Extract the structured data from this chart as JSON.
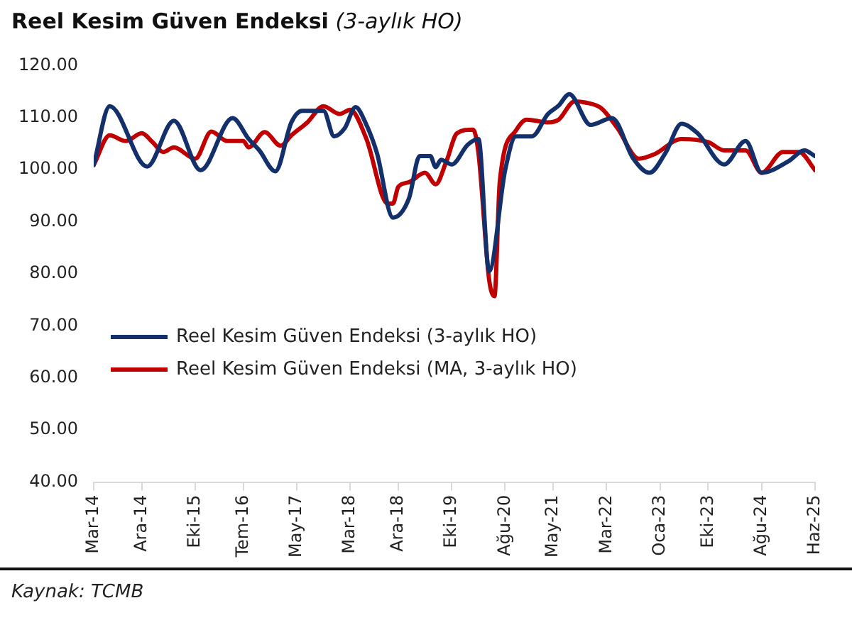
{
  "chart_data": {
    "type": "line",
    "title": "Reel Kesim Güven Endeksi",
    "subtitle": "(3-aylık HO)",
    "annotations": [
      "Kaynak: TCMB"
    ],
    "xlim": [
      "2014-03",
      "2025-06"
    ],
    "xticks": [
      {
        "value": "2014-03",
        "label": "Mar-14"
      },
      {
        "value": "2014-12",
        "label": "Ara-14"
      },
      {
        "value": "2015-10",
        "label": "Eki-15"
      },
      {
        "value": "2016-07",
        "label": "Tem-16"
      },
      {
        "value": "2017-05",
        "label": "May-17"
      },
      {
        "value": "2018-03",
        "label": "Mar-18"
      },
      {
        "value": "2018-12",
        "label": "Ara-18"
      },
      {
        "value": "2019-10",
        "label": "Eki-19"
      },
      {
        "value": "2020-08",
        "label": "Ağu-20"
      },
      {
        "value": "2021-05",
        "label": "May-21"
      },
      {
        "value": "2022-03",
        "label": "Mar-22"
      },
      {
        "value": "2023-01",
        "label": "Oca-23"
      },
      {
        "value": "2023-10",
        "label": "Eki-23"
      },
      {
        "value": "2024-08",
        "label": "Ağu-24"
      },
      {
        "value": "2025-06",
        "label": "Haz-25"
      }
    ],
    "ylim": [
      40,
      120
    ],
    "yticks": [
      {
        "value": 40,
        "label": "40.00"
      },
      {
        "value": 50,
        "label": "50.00"
      },
      {
        "value": 60,
        "label": "60.00"
      },
      {
        "value": 70,
        "label": "70.00"
      },
      {
        "value": 80,
        "label": "80.00"
      },
      {
        "value": 90,
        "label": "90.00"
      },
      {
        "value": 100,
        "label": "100.00"
      },
      {
        "value": 110,
        "label": "110.00"
      },
      {
        "value": 120,
        "label": "120.00"
      }
    ],
    "grid": false,
    "legend": "left",
    "marker": "none",
    "line_style": "solid",
    "series": [
      {
        "name": "Reel Kesim Güven Endeksi (3-aylık HO)",
        "color": "#14306b",
        "x": [
          "2014-03",
          "2014-06",
          "2015-01",
          "2015-06",
          "2015-11",
          "2016-05",
          "2016-08",
          "2016-10",
          "2017-01",
          "2017-04",
          "2017-06",
          "2017-10",
          "2017-12",
          "2018-02",
          "2018-04",
          "2018-06",
          "2018-08",
          "2018-11",
          "2019-02",
          "2019-04",
          "2019-06",
          "2019-07",
          "2019-08",
          "2019-10",
          "2020-01",
          "2020-03",
          "2020-05",
          "2020-08",
          "2020-10",
          "2021-01",
          "2021-04",
          "2021-06",
          "2021-08",
          "2021-12",
          "2022-04",
          "2022-08",
          "2022-11",
          "2023-02",
          "2023-05",
          "2023-08",
          "2024-01",
          "2024-05",
          "2024-08",
          "2025-01",
          "2025-04",
          "2025-06"
        ],
        "values": [
          100.9,
          112.2,
          100.6,
          109.4,
          99.9,
          109.9,
          105.9,
          103.7,
          99.7,
          109.1,
          111.3,
          111.3,
          106.4,
          108,
          112,
          108.7,
          103.2,
          90.8,
          94.5,
          102.6,
          102.6,
          100.5,
          101.9,
          101,
          104.8,
          105.9,
          80.5,
          99.9,
          106.4,
          106.4,
          110.7,
          112.3,
          114.5,
          108.6,
          109.9,
          102.1,
          99.4,
          103.2,
          108.8,
          107,
          101,
          105.5,
          99.4,
          101.6,
          103.7,
          102.6
        ]
      },
      {
        "name": "Reel Kesim Güven Endeksi (MA, 3-aylık HO)",
        "color": "#c00000",
        "x": [
          "2014-03",
          "2014-06",
          "2014-09",
          "2014-12",
          "2015-02",
          "2015-04",
          "2015-06",
          "2015-10",
          "2016-01",
          "2016-04",
          "2016-07",
          "2016-08",
          "2016-11",
          "2017-02",
          "2017-04",
          "2017-07",
          "2017-10",
          "2018-01",
          "2018-03",
          "2018-06",
          "2018-10",
          "2018-11",
          "2018-12",
          "2019-02",
          "2019-05",
          "2019-07",
          "2019-09",
          "2019-11",
          "2020-02",
          "2020-03",
          "2020-05",
          "2020-06",
          "2020-07",
          "2020-10",
          "2020-12",
          "2021-04",
          "2021-06",
          "2021-09",
          "2021-11",
          "2022-02",
          "2022-05",
          "2022-09",
          "2022-12",
          "2023-05",
          "2023-10",
          "2024-01",
          "2024-05",
          "2024-08",
          "2024-12",
          "2025-03",
          "2025-06"
        ],
        "values": [
          100.9,
          106.6,
          105.5,
          107,
          105.3,
          103.4,
          104.3,
          102.1,
          107.3,
          105.5,
          105.5,
          104.3,
          107.2,
          104.6,
          106.6,
          109.1,
          112.2,
          110.7,
          111.5,
          106,
          93.5,
          93.5,
          96.7,
          97.6,
          99.4,
          97.2,
          101.6,
          107,
          107.7,
          103.2,
          78.9,
          75.7,
          97.8,
          107.5,
          109.6,
          109.1,
          109.6,
          113.1,
          112.9,
          111.8,
          108,
          102.1,
          103,
          105.9,
          105.3,
          103.7,
          103.7,
          99.4,
          103.4,
          103.4,
          99.9
        ]
      }
    ]
  }
}
